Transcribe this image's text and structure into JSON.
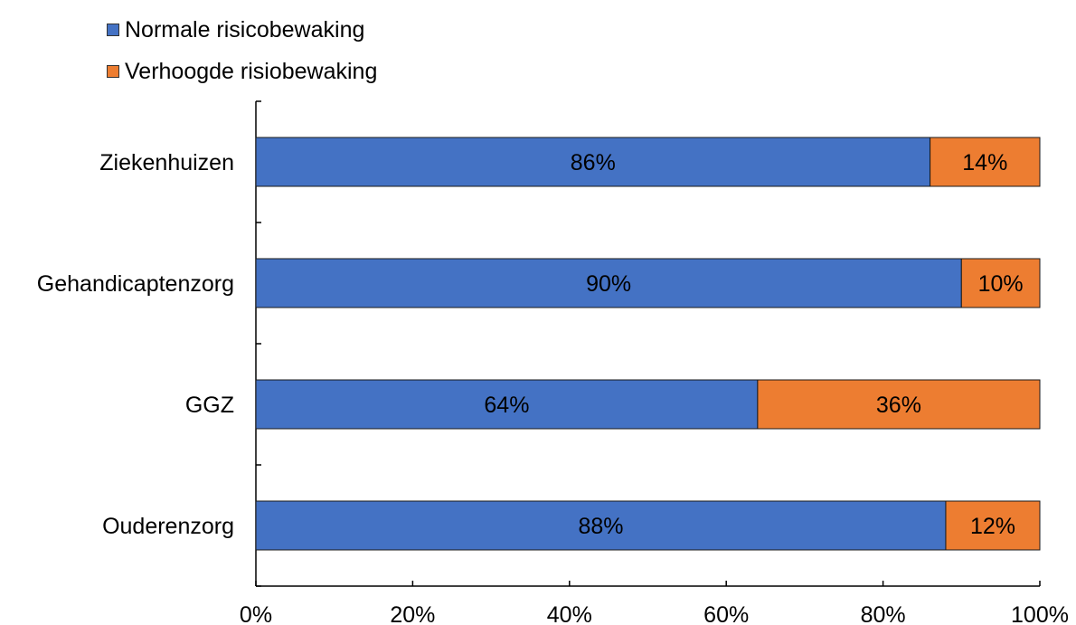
{
  "chart_data": {
    "type": "bar",
    "orientation": "horizontal",
    "stacked": true,
    "categories": [
      "Ziekenhuizen",
      "Gehandicaptenzorg",
      "GGZ",
      "Ouderenzorg"
    ],
    "series": [
      {
        "name": "Normale risicobewaking",
        "color": "#4472C4",
        "values": [
          86,
          90,
          64,
          88
        ],
        "labels": [
          "86%",
          "90%",
          "64%",
          "88%"
        ]
      },
      {
        "name": "Verhoogde risiobewaking",
        "color": "#ED7D31",
        "values": [
          14,
          10,
          36,
          12
        ],
        "labels": [
          "14%",
          "10%",
          "36%",
          "12%"
        ]
      }
    ],
    "x_ticks": [
      "0%",
      "20%",
      "40%",
      "60%",
      "80%",
      "100%"
    ],
    "xlim": [
      0,
      100
    ],
    "grid": false,
    "legend_position": "top-left"
  }
}
